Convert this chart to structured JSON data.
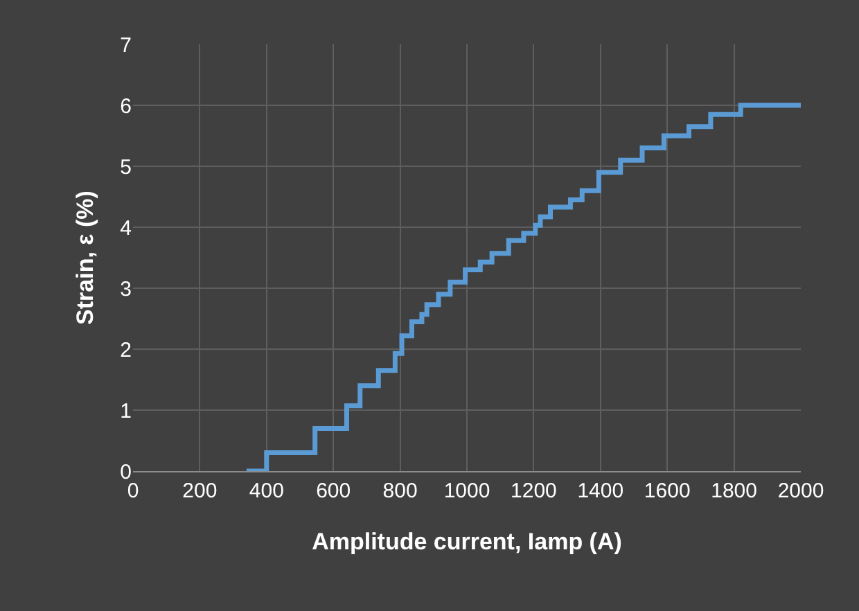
{
  "chart_data": {
    "type": "step",
    "xlabel": "Amplitude current, Iamp (A)",
    "ylabel": "Strain, ε (%)",
    "x": [
      340,
      400,
      545,
      640,
      680,
      735,
      785,
      805,
      835,
      865,
      880,
      915,
      950,
      995,
      1040,
      1075,
      1125,
      1170,
      1205,
      1220,
      1250,
      1310,
      1345,
      1395,
      1460,
      1525,
      1590,
      1665,
      1730,
      1820,
      2000
    ],
    "series": [
      {
        "color": "#5b9bd5",
        "values": [
          0,
          0.3,
          0.7,
          1.07,
          1.4,
          1.65,
          1.93,
          2.22,
          2.45,
          2.57,
          2.73,
          2.9,
          3.1,
          3.3,
          3.43,
          3.57,
          3.78,
          3.9,
          4.03,
          4.17,
          4.33,
          4.45,
          4.6,
          4.9,
          5.1,
          5.3,
          5.5,
          5.65,
          5.85,
          6.0,
          6.0
        ]
      }
    ],
    "xlim": [
      0,
      2000
    ],
    "xticks": [
      0,
      200,
      400,
      600,
      800,
      1000,
      1200,
      1400,
      1600,
      1800,
      2000
    ],
    "ylim": [
      0,
      7
    ],
    "yticks": [
      0,
      1,
      2,
      3,
      4,
      5,
      6,
      7
    ],
    "grid": true,
    "marker": "none",
    "line_style": "solid"
  }
}
